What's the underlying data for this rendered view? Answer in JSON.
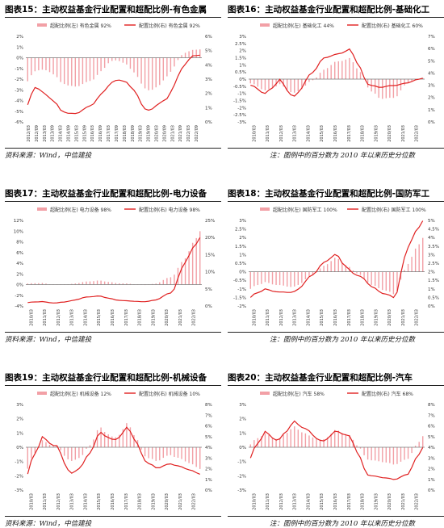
{
  "panels": [
    {
      "title": "图表15：主动权益基金行业配置和超配比例-有色金属"
    },
    {
      "title": "图表16：主动权益基金行业配置和超配比例-基础化工"
    },
    {
      "title": "图表17：主动权益基金行业配置和超配比例-电力设备"
    },
    {
      "title": "图表18：主动权益基金行业配置和超配比例-国防军工"
    },
    {
      "title": "图表19：主动权益基金行业配置和超配比例-机械设备"
    },
    {
      "title": "图表20：主动权益基金行业配置和超配比例-汽车"
    }
  ],
  "footer": {
    "source": "资料来源：Wind，中信建投",
    "note": "注：图例中的百分数为 2010 年以来历史分位数"
  },
  "colors": {
    "bar": "#f2a0a6",
    "line": "#e02020",
    "axis": "#888888"
  },
  "chart_data": [
    {
      "type": "bar",
      "x": [
        "2012/03",
        "2012/09",
        "2013/03",
        "2013/09",
        "2014/03",
        "2014/09",
        "2015/03",
        "2015/09",
        "2016/03",
        "2016/09",
        "2017/03",
        "2017/09",
        "2018/03",
        "2018/09",
        "2019/03",
        "2019/09",
        "2020/03",
        "2020/09",
        "2021/03",
        "2021/09",
        "2022/03",
        "2022/09"
      ],
      "series": [
        {
          "name": "超配比例(左) 有色金属 92%",
          "axis": "left",
          "values": [
            -2.2,
            -1.2,
            -1.1,
            -1.4,
            -2.3,
            -2.6,
            -2.7,
            -2.4,
            -2.0,
            -1.2,
            -0.4,
            -0.2,
            -0.6,
            -1.4,
            -2.7,
            -3.1,
            -2.6,
            -1.8,
            -0.5,
            0.4,
            0.7,
            0.8
          ]
        },
        {
          "name": "配置比例(右) 有色金属 92%",
          "axis": "right",
          "values": [
            1.2,
            2.5,
            2.0,
            1.6,
            0.8,
            0.6,
            0.6,
            0.9,
            1.3,
            2.0,
            2.6,
            3.0,
            2.8,
            2.2,
            1.0,
            0.8,
            1.3,
            1.6,
            2.9,
            3.9,
            4.6,
            4.7
          ]
        }
      ],
      "ylim_left": [
        -6,
        2
      ],
      "ylim_right": [
        0,
        6
      ],
      "yticks_left": [
        "2%",
        "1%",
        "0%",
        "-1%",
        "-2%",
        "-3%",
        "-4%",
        "-5%",
        "-6%"
      ],
      "yticks_right": [
        "6%",
        "5%",
        "4%",
        "3%",
        "2%",
        "1%",
        "0%"
      ],
      "xticks": [
        "2012/03",
        "2012/09",
        "2013/03",
        "2013/09",
        "2014/03",
        "2014/09",
        "2015/03",
        "2015/09",
        "2016/03",
        "2016/09",
        "2017/03",
        "2017/09",
        "2018/03",
        "2018/09",
        "2019/03",
        "2019/09",
        "2020/03",
        "2020/09",
        "2021/03",
        "2021/09",
        "2022/03",
        "2022/09"
      ],
      "grid": false,
      "legend": "top"
    },
    {
      "type": "bar",
      "x": [
        "2010/03",
        "2011/03",
        "2012/03",
        "2013/03",
        "2014/03",
        "2015/03",
        "2016/03",
        "2017/03",
        "2018/03",
        "2019/03",
        "2020/03",
        "2021/03",
        "2022/03"
      ],
      "series": [
        {
          "name": "超配比例(左) 基础化工 44%",
          "axis": "left",
          "values": [
            -0.3,
            -0.8,
            -0.4,
            -1.0,
            -0.4,
            0.6,
            1.2,
            1.5,
            -0.3,
            -1.4,
            -1.3,
            -0.2,
            0.1
          ]
        },
        {
          "name": "配置比例(右) 基础化工 60%",
          "axis": "right",
          "values": [
            3.0,
            2.3,
            3.4,
            2.0,
            3.5,
            5.2,
            5.5,
            6.0,
            3.2,
            2.8,
            3.0,
            3.2,
            3.6
          ]
        }
      ],
      "ylim_left": [
        -3,
        3
      ],
      "ylim_right": [
        0,
        7
      ],
      "yticks_left": [
        "3%",
        "2.5%",
        "2%",
        "1.5%",
        "1%",
        "0.5%",
        "0%",
        "-0.5%",
        "-1%",
        "-1.5%",
        "-2%",
        "-2.5%",
        "-3%"
      ],
      "yticks_right": [
        "7%",
        "6%",
        "5%",
        "4%",
        "3%",
        "2%",
        "1%",
        "0%"
      ],
      "xticks": [
        "2010/03",
        "2011/03",
        "2012/03",
        "2013/03",
        "2014/03",
        "2015/03",
        "2016/03",
        "2017/03",
        "2018/03",
        "2019/03",
        "2020/03",
        "2021/03",
        "2022/03"
      ],
      "grid": false,
      "legend": "top"
    },
    {
      "type": "bar",
      "x": [
        "2010/03",
        "2011/03",
        "2012/03",
        "2013/03",
        "2014/03",
        "2015/03",
        "2016/03",
        "2017/03",
        "2018/03",
        "2019/03",
        "2020/03",
        "2021/03",
        "2022/03"
      ],
      "series": [
        {
          "name": "超配比例(左) 电力设备 98%",
          "axis": "left",
          "values": [
            0.2,
            0.3,
            -0.1,
            0.1,
            0.5,
            0.8,
            0.3,
            0.2,
            -0.1,
            0.2,
            1.5,
            5.0,
            10.0
          ]
        },
        {
          "name": "配置比例(右) 电力设备 98%",
          "axis": "right",
          "values": [
            1.0,
            1.3,
            0.8,
            1.5,
            2.5,
            3.0,
            1.8,
            1.5,
            1.2,
            1.8,
            4.0,
            13.0,
            20.0
          ]
        }
      ],
      "ylim_left": [
        -4,
        12
      ],
      "ylim_right": [
        0,
        25
      ],
      "yticks_left": [
        "12%",
        "10%",
        "8%",
        "6%",
        "4%",
        "2%",
        "0%",
        "-2%",
        "-4%"
      ],
      "yticks_right": [
        "25%",
        "20%",
        "15%",
        "10%",
        "5%",
        "0%"
      ],
      "xticks": [
        "2010/03",
        "2011/03",
        "2012/03",
        "2013/03",
        "2014/03",
        "2015/03",
        "2016/03",
        "2017/03",
        "2018/03",
        "2019/03",
        "2020/03",
        "2021/03",
        "2022/03"
      ],
      "grid": false,
      "legend": "top"
    },
    {
      "type": "bar",
      "x": [
        "2010/03",
        "2011/03",
        "2012/03",
        "2013/03",
        "2014/03",
        "2015/03",
        "2016/03",
        "2017/03",
        "2018/03",
        "2019/03",
        "2020/03",
        "2021/03",
        "2022/03"
      ],
      "series": [
        {
          "name": "超配比例(左) 国防军工 100%",
          "axis": "left",
          "values": [
            -1.0,
            -0.6,
            -0.8,
            -0.9,
            -0.4,
            0.3,
            0.8,
            0.2,
            -0.5,
            -1.0,
            -1.3,
            0.5,
            2.0
          ]
        },
        {
          "name": "配置比例(右) 国防军工 100%",
          "axis": "right",
          "values": [
            0.5,
            1.0,
            0.8,
            0.8,
            1.5,
            2.5,
            3.0,
            2.0,
            1.5,
            0.8,
            0.5,
            3.5,
            5.0
          ]
        }
      ],
      "ylim_left": [
        -2,
        3
      ],
      "ylim_right": [
        0,
        5
      ],
      "yticks_left": [
        "3%",
        "2.5%",
        "2%",
        "1.5%",
        "1%",
        "0.5%",
        "0%",
        "-0.5%",
        "-1%",
        "-1.5%",
        "-2%"
      ],
      "yticks_right": [
        "5%",
        "4.5%",
        "4%",
        "3.5%",
        "3%",
        "2.5%",
        "2%",
        "1.5%",
        "1%",
        "0.5%",
        "0%"
      ],
      "xticks": [
        "2010/03",
        "2011/03",
        "2012/03",
        "2013/03",
        "2014/03",
        "2015/03",
        "2016/03",
        "2017/03",
        "2018/03",
        "2019/03",
        "2020/03",
        "2021/03",
        "2022/03"
      ],
      "grid": false,
      "legend": "top"
    },
    {
      "type": "bar",
      "x": [
        "2010/03",
        "2011/03",
        "2012/03",
        "2013/03",
        "2014/03",
        "2015/03",
        "2016/03",
        "2017/03",
        "2018/03",
        "2019/03",
        "2020/03",
        "2021/03",
        "2022/03"
      ],
      "series": [
        {
          "name": "超配比例(左) 机械设备 12%",
          "axis": "left",
          "values": [
            -1.5,
            0.5,
            0.0,
            -1.0,
            -0.5,
            1.5,
            0.5,
            1.8,
            -0.5,
            -1.0,
            -0.5,
            -1.0,
            -1.5
          ]
        },
        {
          "name": "配置比例(右) 机械设备 10%",
          "axis": "right",
          "values": [
            1.5,
            5.0,
            4.0,
            1.5,
            2.5,
            5.5,
            4.5,
            6.0,
            3.0,
            2.0,
            2.5,
            2.0,
            1.5
          ]
        }
      ],
      "ylim_left": [
        -3,
        3
      ],
      "ylim_right": [
        0,
        8
      ],
      "yticks_left": [
        "3%",
        "2%",
        "1%",
        "0%",
        "-1%",
        "-2%",
        "-3%"
      ],
      "yticks_right": [
        "8%",
        "7%",
        "6%",
        "5%",
        "4%",
        "3%",
        "2%",
        "1%",
        "0%"
      ],
      "xticks": [
        "2010/03",
        "2011/03",
        "2012/03",
        "2013/03",
        "2014/03",
        "2015/03",
        "2016/03",
        "2017/03",
        "2018/03",
        "2019/03",
        "2020/03",
        "2021/03",
        "2022/03"
      ],
      "grid": false,
      "legend": "top"
    },
    {
      "type": "bar",
      "x": [
        "2010/03",
        "2011/03",
        "2012/03",
        "2013/03",
        "2014/03",
        "2015/03",
        "2016/03",
        "2017/03",
        "2018/03",
        "2019/03",
        "2020/03",
        "2021/03",
        "2022/03"
      ],
      "series": [
        {
          "name": "超配比例(左) 汽车 58%",
          "axis": "left",
          "values": [
            0.2,
            1.0,
            0.5,
            1.5,
            0.8,
            0.5,
            1.2,
            0.8,
            -0.8,
            -1.0,
            -1.2,
            -0.8,
            0.8
          ]
        },
        {
          "name": "配置比例(右) 汽车 68%",
          "axis": "right",
          "values": [
            3.0,
            5.5,
            4.5,
            6.5,
            5.5,
            4.5,
            5.5,
            5.0,
            1.5,
            1.2,
            1.0,
            1.5,
            4.0
          ]
        }
      ],
      "ylim_left": [
        -3,
        3
      ],
      "ylim_right": [
        0,
        8
      ],
      "yticks_left": [
        "3%",
        "2%",
        "1%",
        "0%",
        "-1%",
        "-2%",
        "-3%"
      ],
      "yticks_right": [
        "8%",
        "7%",
        "6%",
        "5%",
        "4%",
        "3%",
        "2%",
        "1%",
        "0%"
      ],
      "xticks": [
        "2010/03",
        "2011/03",
        "2012/03",
        "2013/03",
        "2014/03",
        "2015/03",
        "2016/03",
        "2017/03",
        "2018/03",
        "2019/03",
        "2020/03",
        "2021/03",
        "2022/03"
      ],
      "grid": false,
      "legend": "top"
    }
  ]
}
